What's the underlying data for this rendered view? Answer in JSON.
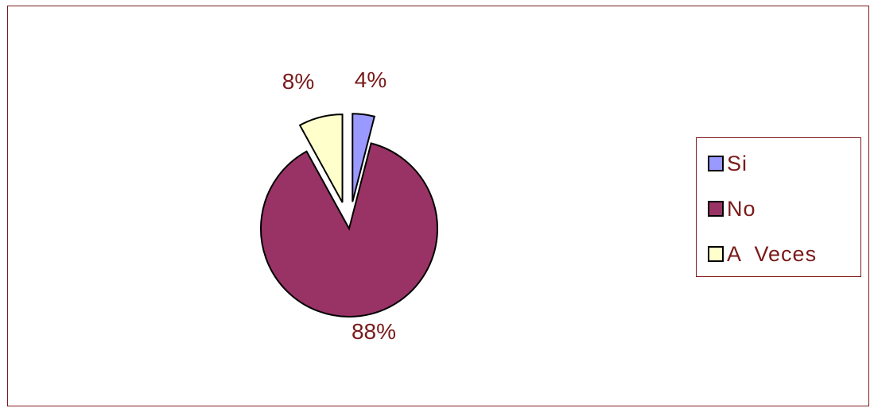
{
  "chart_data": {
    "type": "pie",
    "categories": [
      "Si",
      "No",
      "A  Veces"
    ],
    "values": [
      4,
      88,
      8
    ],
    "labels": [
      "4%",
      "88%",
      "8%"
    ],
    "colors": [
      "#9999ff",
      "#993366",
      "#ffffcc"
    ],
    "exploded": true,
    "legend_position": "right"
  },
  "legend": {
    "items": [
      {
        "label": "Si",
        "color": "#9999ff"
      },
      {
        "label": "No",
        "color": "#993366"
      },
      {
        "label": "A  Veces",
        "color": "#ffffcc"
      }
    ]
  }
}
